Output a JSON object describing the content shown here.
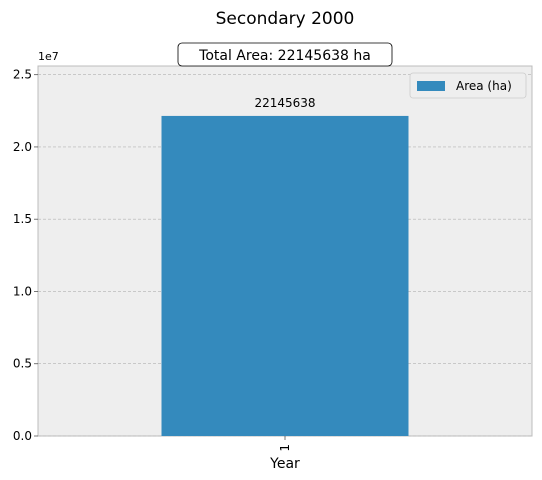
{
  "chart_data": {
    "type": "bar",
    "title": "Secondary 2000",
    "annotation": "Total Area: 22145638 ha",
    "categories": [
      "1"
    ],
    "series": [
      {
        "name": "Area (ha)",
        "values": [
          22145638
        ]
      }
    ],
    "data_labels": [
      "22145638"
    ],
    "xlabel": "Year",
    "ylabel": "",
    "ylim": [
      0,
      25600000
    ],
    "y_ticks": [
      0,
      5000000,
      10000000,
      15000000,
      20000000,
      25000000
    ],
    "y_tick_labels": [
      "0.0",
      "0.5",
      "1.0",
      "1.5",
      "2.0",
      "2.5"
    ],
    "y_offset_label": "1e7",
    "grid": true,
    "legend_position": "top-right",
    "colors": {
      "bar": "#348ABD",
      "plot_background": "#EEEEEE",
      "grid": "#B2B2B2",
      "axis_edge": "#BCBCBC"
    }
  }
}
